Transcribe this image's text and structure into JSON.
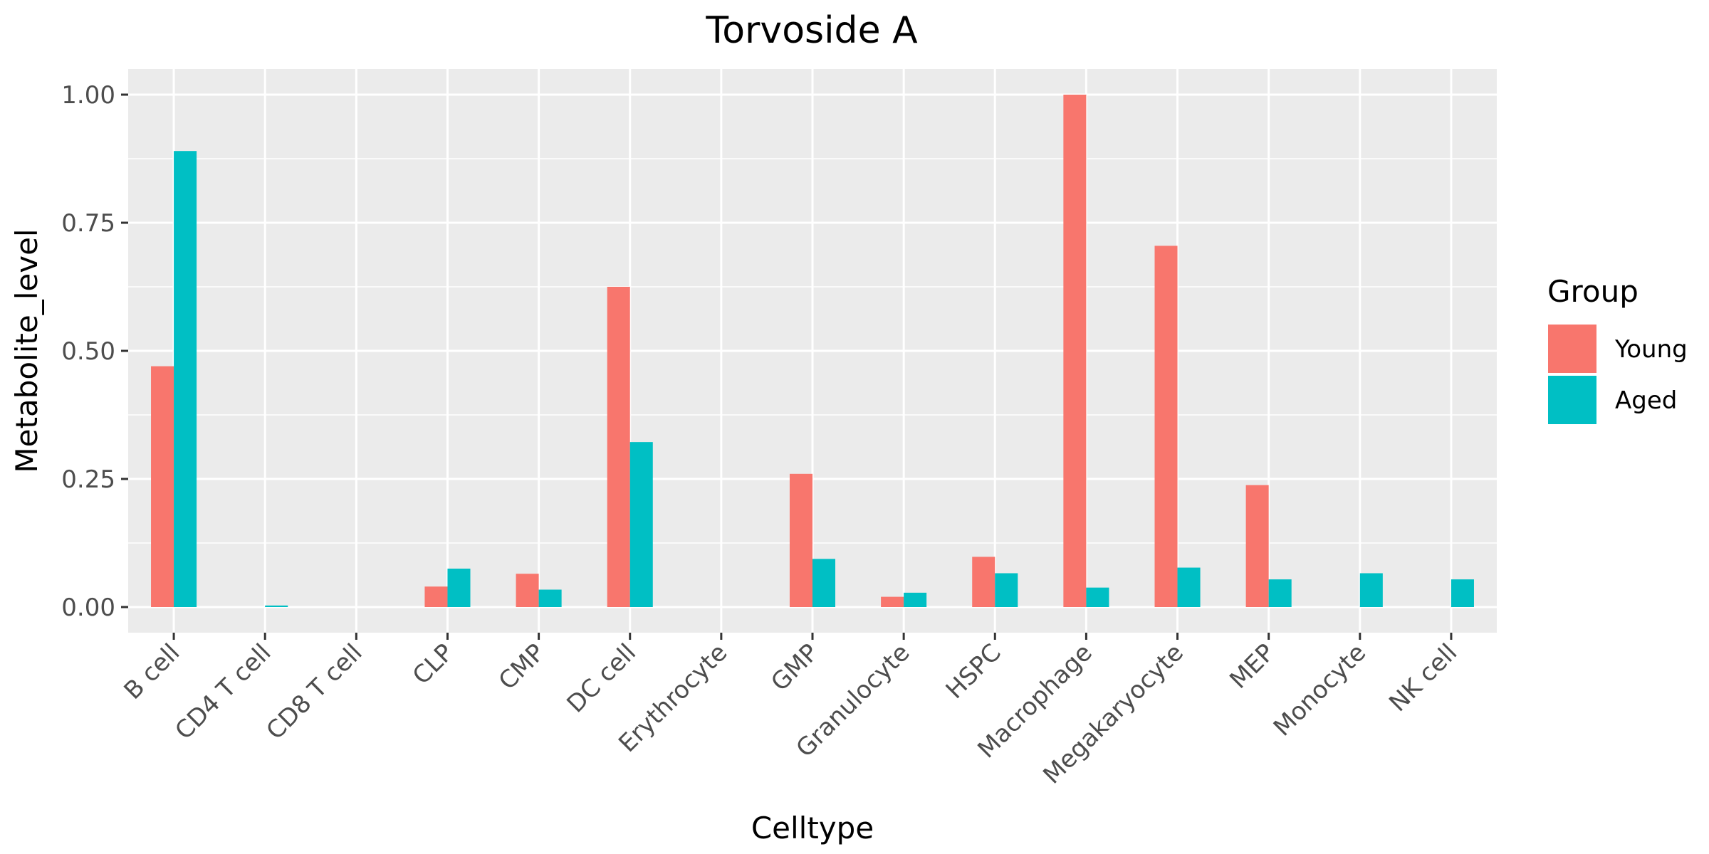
{
  "chart_data": {
    "type": "bar",
    "title": "Torvoside A",
    "xlabel": "Celltype",
    "ylabel": "Metabolite_level",
    "categories": [
      "B cell",
      "CD4 T cell",
      "CD8 T cell",
      "CLP",
      "CMP",
      "DC cell",
      "Erythrocyte",
      "GMP",
      "Granulocyte",
      "HSPC",
      "Macrophage",
      "Megakaryocyte",
      "MEP",
      "Monocyte",
      "NK cell"
    ],
    "series": [
      {
        "name": "Young",
        "color": "#F8766D",
        "values": [
          0.47,
          0,
          0,
          0.04,
          0.065,
          0.625,
          0,
          0.26,
          0.02,
          0.098,
          1.0,
          0.705,
          0.238,
          0,
          0
        ]
      },
      {
        "name": "Aged",
        "color": "#00BFC4",
        "values": [
          0.89,
          0.003,
          0,
          0.075,
          0.034,
          0.322,
          0,
          0.094,
          0.028,
          0.066,
          0.038,
          0.077,
          0.054,
          0.066,
          0.054
        ]
      }
    ],
    "ylim": [
      -0.05,
      1.05
    ],
    "yticks": [
      0.0,
      0.25,
      0.5,
      0.75,
      1.0
    ],
    "ytick_labels": [
      "0.00",
      "0.25",
      "0.50",
      "0.75",
      "1.00"
    ],
    "grid": true,
    "panel_background": "#EBEBEB",
    "legend": {
      "title": "Group",
      "position": "right"
    }
  }
}
